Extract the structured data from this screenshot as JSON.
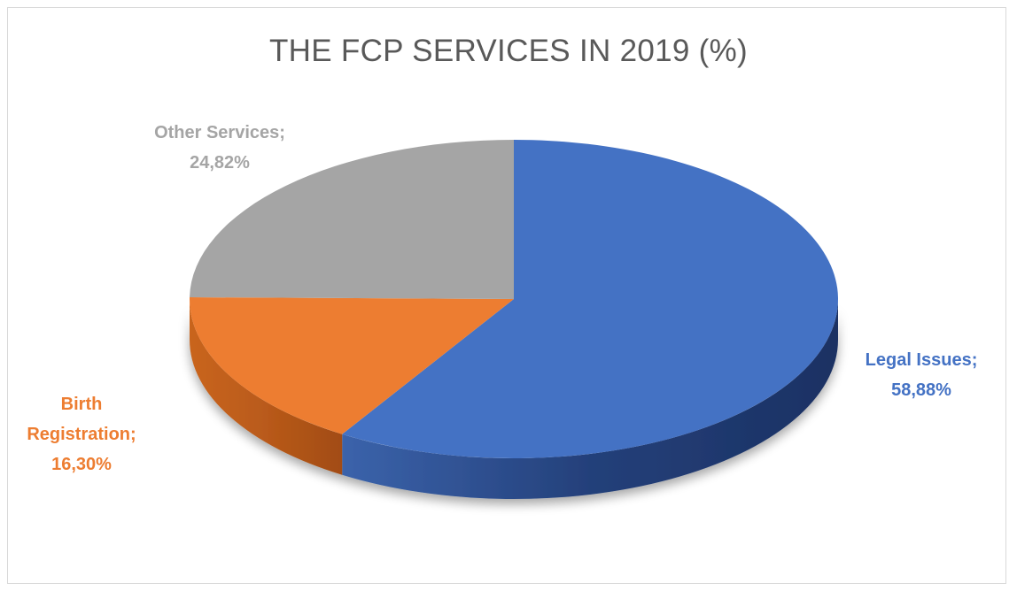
{
  "chart_data": {
    "type": "pie",
    "title": "THE FCP SERVICES IN 2019 (%)",
    "categories": [
      "Legal Issues",
      "Birth Registration",
      "Other Services"
    ],
    "values": [
      58.88,
      16.3,
      24.82
    ],
    "data_labels": [
      [
        "Legal Issues;",
        "58,88%"
      ],
      [
        "Birth",
        "Registration;",
        "16,30%"
      ],
      [
        "Other Services;",
        "24,82%"
      ]
    ],
    "colors": [
      "#4472C4",
      "#ED7D31",
      "#A5A5A5"
    ],
    "label_colors": [
      "#4472C4",
      "#ED7D31",
      "#A5A5A5"
    ],
    "style": "3d",
    "legend": "none"
  }
}
